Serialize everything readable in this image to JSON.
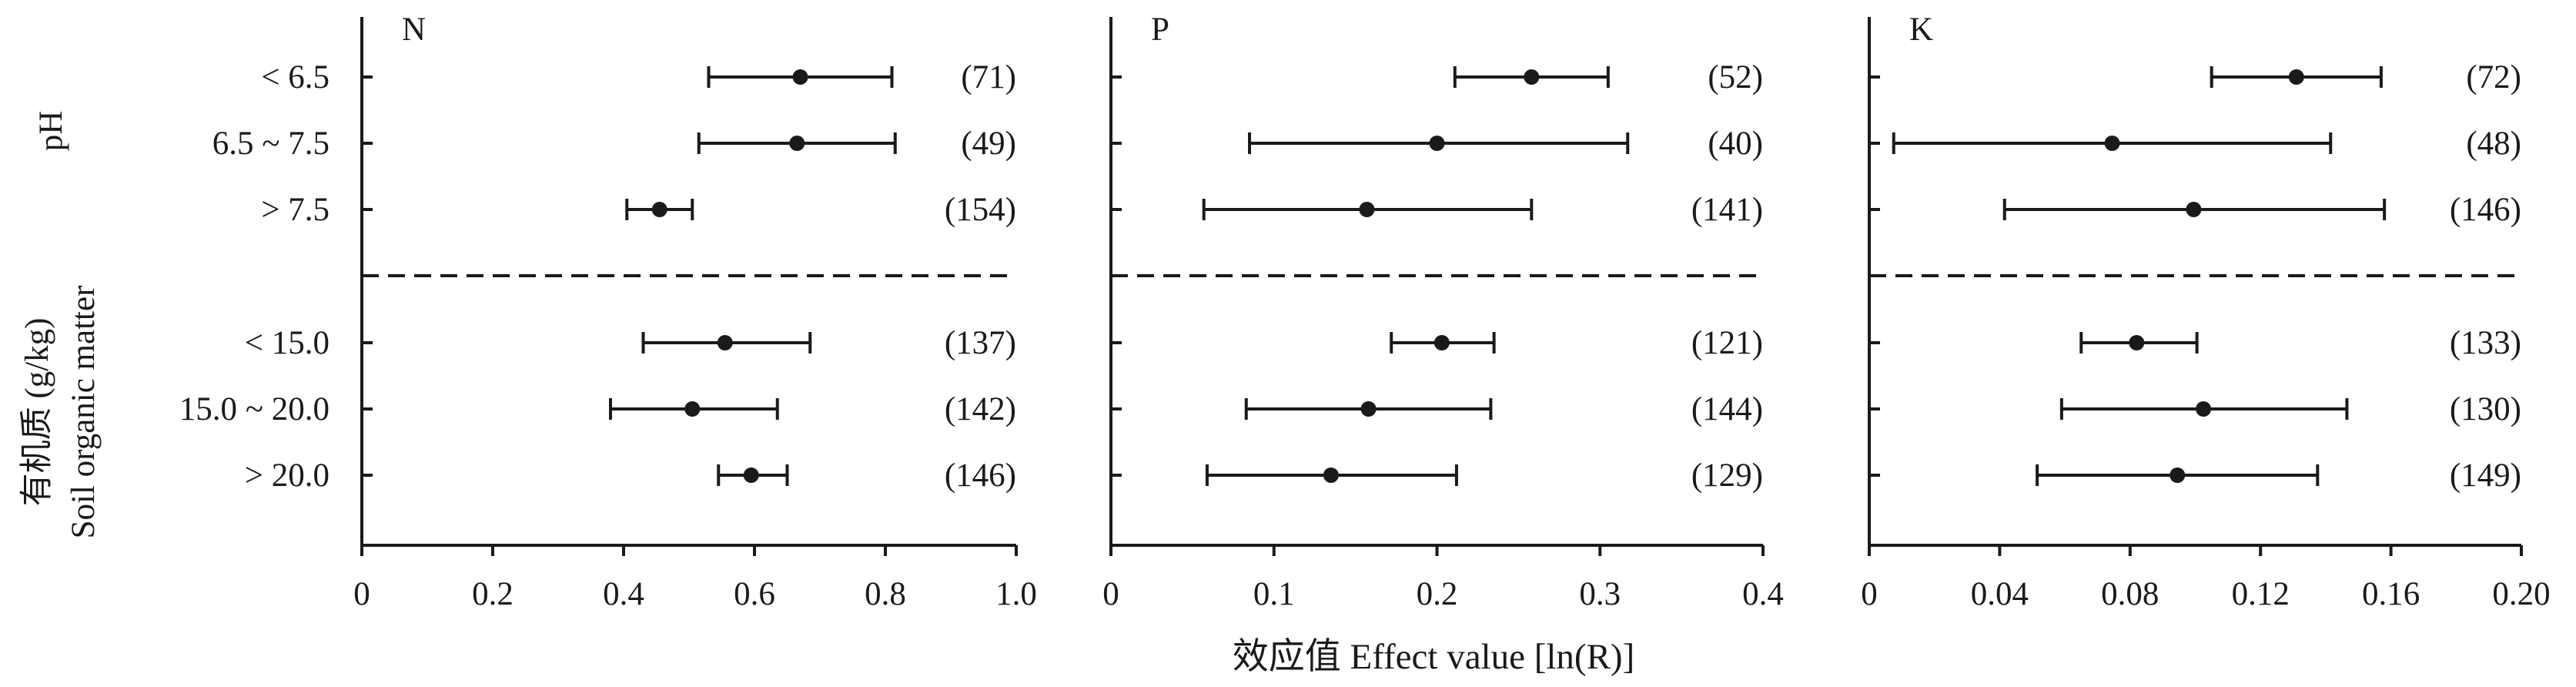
{
  "figure": {
    "xlabel": "效应值 Effect value [ln(R)]",
    "group_labels": [
      "pH",
      "有机质 (g/kg)",
      "Soil organic matter"
    ]
  },
  "chart_data": [
    {
      "type": "scatter",
      "title": "N",
      "xlabel": "效应值 Effect value [ln(R)]",
      "xlim": [
        0,
        1.0
      ],
      "xticks": [
        "0",
        "0.2",
        "0.4",
        "0.6",
        "0.8",
        "1.0"
      ],
      "categories": [
        "< 6.5",
        "6.5 ~ 7.5",
        "> 7.5",
        "< 15.0",
        "15.0 ~ 20.0",
        "> 20.0"
      ],
      "groups": [
        {
          "label": "pH",
          "categories": [
            "< 6.5",
            "6.5 ~ 7.5",
            "> 7.5"
          ]
        },
        {
          "label": "有机质 (g/kg) Soil organic matter",
          "categories": [
            "< 15.0",
            "15.0 ~ 20.0",
            "> 20.0"
          ]
        }
      ],
      "values": [
        0.67,
        0.665,
        0.455,
        0.555,
        0.505,
        0.595
      ],
      "ci_low": [
        0.53,
        0.515,
        0.405,
        0.43,
        0.38,
        0.545
      ],
      "ci_high": [
        0.81,
        0.815,
        0.505,
        0.685,
        0.635,
        0.65
      ],
      "n": [
        "(71)",
        "(49)",
        "(154)",
        "(137)",
        "(142)",
        "(146)"
      ]
    },
    {
      "type": "scatter",
      "title": "P",
      "xlabel": "效应值 Effect value [ln(R)]",
      "xlim": [
        0,
        0.4
      ],
      "xticks": [
        "0",
        "0.1",
        "0.2",
        "0.3",
        "0.4"
      ],
      "categories": [
        "< 6.5",
        "6.5 ~ 7.5",
        "> 7.5",
        "< 15.0",
        "15.0 ~ 20.0",
        "> 20.0"
      ],
      "values": [
        0.258,
        0.2,
        0.157,
        0.203,
        0.158,
        0.135
      ],
      "ci_low": [
        0.211,
        0.085,
        0.057,
        0.172,
        0.083,
        0.059
      ],
      "ci_high": [
        0.305,
        0.317,
        0.258,
        0.235,
        0.233,
        0.212
      ],
      "n": [
        "(52)",
        "(40)",
        "(141)",
        "(121)",
        "(144)",
        "(129)"
      ]
    },
    {
      "type": "scatter",
      "title": "K",
      "xlabel": "效应值 Effect value [ln(R)]",
      "xlim": [
        0,
        0.2
      ],
      "xticks": [
        "0",
        "0.04",
        "0.08",
        "0.12",
        "0.16",
        "0.20"
      ],
      "categories": [
        "< 6.5",
        "6.5 ~ 7.5",
        "> 7.5",
        "< 15.0",
        "15.0 ~ 20.0",
        "> 20.0"
      ],
      "values": [
        0.131,
        0.0745,
        0.0995,
        0.082,
        0.1025,
        0.0945
      ],
      "ci_low": [
        0.105,
        0.0075,
        0.0415,
        0.065,
        0.059,
        0.0515
      ],
      "ci_high": [
        0.157,
        0.1415,
        0.158,
        0.1005,
        0.1465,
        0.1375
      ],
      "n": [
        "(72)",
        "(48)",
        "(146)",
        "(133)",
        "(130)",
        "(149)"
      ]
    }
  ]
}
